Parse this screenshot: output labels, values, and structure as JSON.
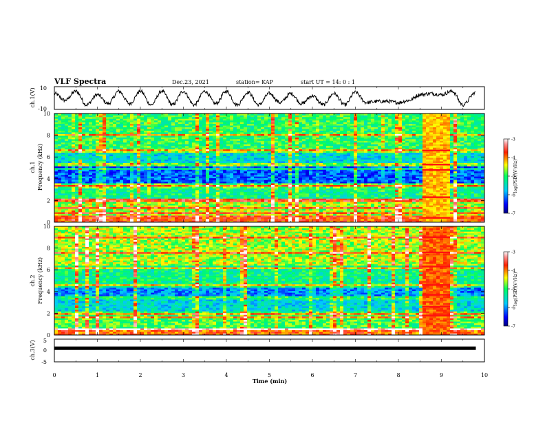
{
  "header": {
    "title": "VLF Spectra",
    "date": "Dec.23, 2021",
    "station": "station= KAP",
    "start": "start  UT =  14: 0  : 1"
  },
  "chart_data": [
    {
      "type": "line",
      "name": "ch1-waveform",
      "ylabel": "ch.1(V)",
      "ylim": [
        -10,
        10
      ],
      "yticks": [
        "10",
        "-10"
      ],
      "xlim": [
        0,
        10
      ],
      "color": "#000000",
      "x": [
        0,
        0.25,
        0.5,
        0.75,
        1.0,
        1.25,
        1.5,
        1.75,
        2.0,
        2.25,
        2.5,
        2.75,
        3.0,
        3.25,
        3.5,
        3.75,
        4.0,
        4.25,
        4.5,
        4.75,
        5.0,
        5.25,
        5.5,
        5.75,
        6.0,
        6.25,
        6.5,
        6.75,
        7.0,
        7.25,
        7.5,
        7.75,
        8.0,
        8.25,
        8.5,
        8.75,
        9.0,
        9.25,
        9.5,
        9.8
      ],
      "y": [
        4,
        -2,
        6,
        -6,
        3,
        -5,
        6,
        -5,
        6,
        -6,
        6,
        -6,
        6,
        -6,
        6,
        -5,
        6,
        -6,
        5,
        -6,
        4,
        -4,
        4,
        -5,
        2,
        -6,
        4,
        -6,
        5,
        -4,
        -3,
        -3,
        -4,
        -2,
        3,
        4,
        3,
        6,
        -6,
        5
      ]
    },
    {
      "type": "heatmap",
      "name": "ch1-spectrogram",
      "ylabel": "ch.1\nFrequency  (kHz)",
      "ylim": [
        0,
        10
      ],
      "xlim": [
        0,
        10
      ],
      "yticks": [
        "0",
        "2",
        "4",
        "6",
        "8",
        "10"
      ],
      "colorbar": {
        "label": "log(PSD)(V²/Hz)",
        "range": [
          -7,
          -3
        ],
        "ticks": [
          "-3",
          "-4",
          "-5",
          "-6",
          "-7"
        ]
      },
      "bands_khz": [
        {
          "from": 0.0,
          "to": 0.6,
          "level": -3.8
        },
        {
          "from": 0.6,
          "to": 2.2,
          "level": -4.6
        },
        {
          "from": 2.2,
          "to": 3.2,
          "level": -5.2
        },
        {
          "from": 3.2,
          "to": 3.6,
          "level": -4.8
        },
        {
          "from": 3.6,
          "to": 5.1,
          "level": -6.2
        },
        {
          "from": 5.1,
          "to": 6.6,
          "level": -5.6
        },
        {
          "from": 6.6,
          "to": 10.0,
          "level": -5.0
        }
      ],
      "event": {
        "t_start": 8.55,
        "t_end": 9.2,
        "level": -4.2
      }
    },
    {
      "type": "heatmap",
      "name": "ch2-spectrogram",
      "ylabel": "ch.2\nFrequency  (kHz)",
      "ylim": [
        0,
        10
      ],
      "xlim": [
        0,
        10
      ],
      "yticks": [
        "0",
        "2",
        "4",
        "6",
        "8",
        "10"
      ],
      "colorbar": {
        "label": "log(PSD)(V²/Hz)",
        "range": [
          -7,
          -3
        ],
        "ticks": [
          "-3",
          "-4",
          "-5",
          "-6",
          "-7"
        ]
      },
      "bands_khz": [
        {
          "from": 0.0,
          "to": 0.6,
          "level": -3.9
        },
        {
          "from": 0.6,
          "to": 2.2,
          "level": -4.9
        },
        {
          "from": 2.2,
          "to": 3.3,
          "level": -5.6
        },
        {
          "from": 3.3,
          "to": 4.6,
          "level": -6.0
        },
        {
          "from": 4.6,
          "to": 6.4,
          "level": -5.2
        },
        {
          "from": 6.4,
          "to": 10.0,
          "level": -4.6
        }
      ],
      "event": {
        "t_start": 8.55,
        "t_end": 9.2,
        "level": -3.9
      }
    },
    {
      "type": "line",
      "name": "ch3-waveform",
      "ylabel": "ch.3(V)",
      "ylim": [
        -5,
        5
      ],
      "yticks": [
        "5",
        "0",
        "-5"
      ],
      "xlim": [
        0,
        10
      ],
      "xlabel": "Time  (min)",
      "xticks": [
        "0",
        "1",
        "2",
        "3",
        "4",
        "5",
        "6",
        "7",
        "8",
        "9",
        "10"
      ],
      "color": "#000000",
      "x": [
        0,
        9.8
      ],
      "y": [
        1,
        1
      ]
    }
  ]
}
